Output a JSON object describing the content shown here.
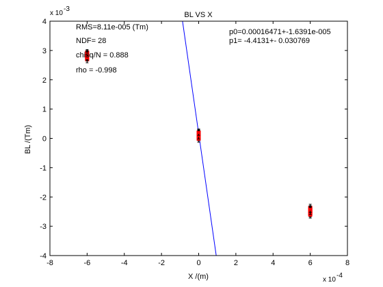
{
  "chart_data": {
    "type": "scatter",
    "title": "BL VS X",
    "xlabel": "X /(m)",
    "ylabel": "BL /(Tm)",
    "x_exponent_label": "x 10",
    "x_exponent": "-4",
    "y_exponent_label": "x 10",
    "y_exponent": "-3",
    "xlim": [
      -8,
      8
    ],
    "ylim": [
      -4,
      4
    ],
    "x_ticks": [
      "-8",
      "-6",
      "-4",
      "-2",
      "0",
      "2",
      "4",
      "6",
      "8"
    ],
    "y_ticks": [
      "-4",
      "-3",
      "-2",
      "-1",
      "0",
      "1",
      "2",
      "3",
      "4"
    ],
    "grid": false,
    "colors": {
      "fit_line": "#0000ff",
      "points": "#ff0000",
      "error_bars": "#000000"
    },
    "stats": [
      "RMS=8.11e-005 (Tm)",
      "NDF=   28",
      "chisq/N = 0.888",
      "rho    = -0.998"
    ],
    "fit_params": [
      "p0=0.00016471+-1.6391e-005",
      "p1=  -4.4131+- 0.030769"
    ],
    "fit_line": {
      "intercept": 0.16471,
      "slope": -4.4131
    },
    "points": [
      {
        "x": -6.0,
        "y": 2.95,
        "err": 0.08
      },
      {
        "x": -6.0,
        "y": 2.9,
        "err": 0.1
      },
      {
        "x": -6.0,
        "y": 2.85,
        "err": 0.1
      },
      {
        "x": -6.0,
        "y": 2.82,
        "err": 0.1
      },
      {
        "x": -6.0,
        "y": 2.78,
        "err": 0.1
      },
      {
        "x": -6.0,
        "y": 2.72,
        "err": 0.08
      },
      {
        "x": -6.0,
        "y": 2.68,
        "err": 0.1
      },
      {
        "x": -6.0,
        "y": 2.8,
        "err": 0.12
      },
      {
        "x": -6.0,
        "y": 2.88,
        "err": 0.1
      },
      {
        "x": -6.0,
        "y": 2.75,
        "err": 0.1
      },
      {
        "x": 0.0,
        "y": 0.22,
        "err": 0.1
      },
      {
        "x": 0.0,
        "y": 0.18,
        "err": 0.1
      },
      {
        "x": 0.0,
        "y": 0.15,
        "err": 0.1
      },
      {
        "x": 0.0,
        "y": 0.12,
        "err": 0.1
      },
      {
        "x": 0.0,
        "y": 0.08,
        "err": 0.1
      },
      {
        "x": 0.0,
        "y": 0.05,
        "err": 0.1
      },
      {
        "x": 0.0,
        "y": 0.02,
        "err": 0.1
      },
      {
        "x": 0.0,
        "y": -0.03,
        "err": 0.1
      },
      {
        "x": 0.0,
        "y": 0.1,
        "err": 0.12
      },
      {
        "x": 0.0,
        "y": 0.2,
        "err": 0.1
      },
      {
        "x": 6.0,
        "y": -2.35,
        "err": 0.1
      },
      {
        "x": 6.0,
        "y": -2.4,
        "err": 0.1
      },
      {
        "x": 6.0,
        "y": -2.45,
        "err": 0.1
      },
      {
        "x": 6.0,
        "y": -2.5,
        "err": 0.1
      },
      {
        "x": 6.0,
        "y": -2.52,
        "err": 0.1
      },
      {
        "x": 6.0,
        "y": -2.55,
        "err": 0.1
      },
      {
        "x": 6.0,
        "y": -2.58,
        "err": 0.1
      },
      {
        "x": 6.0,
        "y": -2.62,
        "err": 0.1
      },
      {
        "x": 6.0,
        "y": -2.48,
        "err": 0.12
      },
      {
        "x": 6.0,
        "y": -2.42,
        "err": 0.1
      }
    ]
  }
}
